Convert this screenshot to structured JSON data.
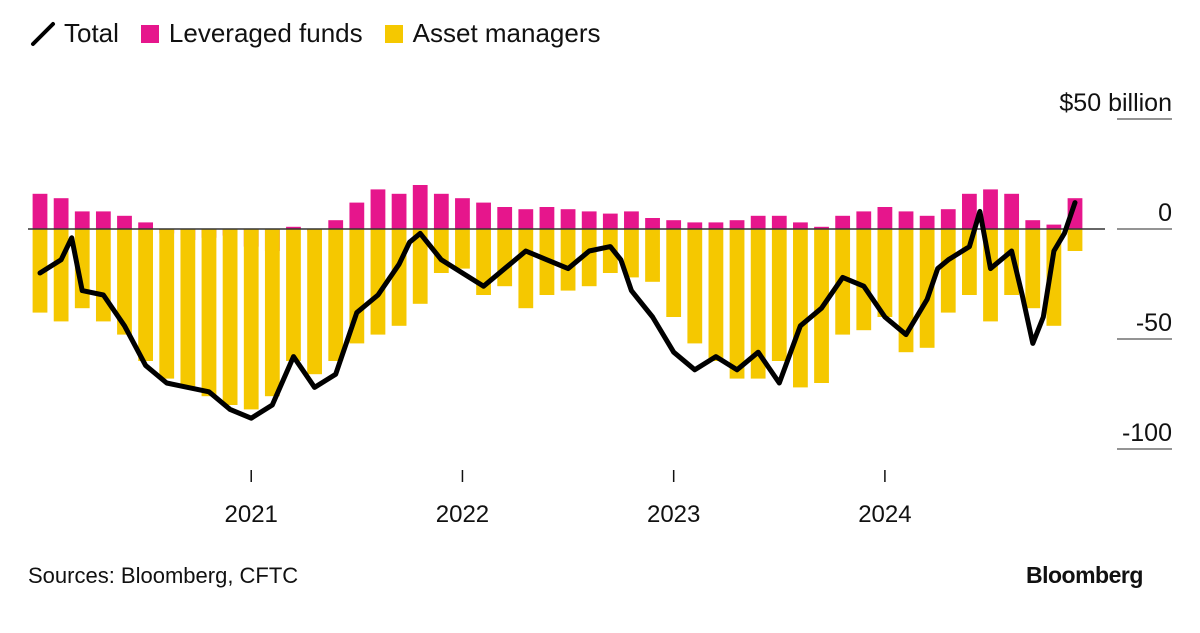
{
  "legend": {
    "total": "Total",
    "leveraged": "Leveraged funds",
    "asset": "Asset managers"
  },
  "colors": {
    "total": "#000000",
    "leveraged": "#e6168c",
    "asset": "#f5c800",
    "zero_line": "#333333"
  },
  "footer": {
    "source": "Sources: Bloomberg, CFTC",
    "brand": "Bloomberg"
  },
  "chart_data": {
    "type": "bar",
    "title": "",
    "y_tick_labels": [
      "$50 billion",
      "0",
      "-50",
      "-100"
    ],
    "y_ticks": [
      50,
      0,
      -50,
      -100
    ],
    "ylim": [
      -110,
      60
    ],
    "x_tick_labels": [
      "2021",
      "2022",
      "2023",
      "2024"
    ],
    "x_ticks": [
      2021.0,
      2022.0,
      2023.0,
      2024.0
    ],
    "xlim": [
      2020.0,
      2024.9
    ],
    "series": [
      {
        "name": "Leveraged funds",
        "kind": "bar",
        "x": [
          2020.0,
          2020.1,
          2020.2,
          2020.3,
          2020.4,
          2020.5,
          2020.6,
          2020.7,
          2020.8,
          2020.9,
          2021.0,
          2021.1,
          2021.2,
          2021.3,
          2021.4,
          2021.5,
          2021.6,
          2021.7,
          2021.8,
          2021.9,
          2022.0,
          2022.1,
          2022.2,
          2022.3,
          2022.4,
          2022.5,
          2022.6,
          2022.7,
          2022.8,
          2022.9,
          2023.0,
          2023.1,
          2023.2,
          2023.3,
          2023.4,
          2023.5,
          2023.6,
          2023.7,
          2023.8,
          2023.9,
          2024.0,
          2024.1,
          2024.2,
          2024.3,
          2024.4,
          2024.5,
          2024.6,
          2024.7,
          2024.8,
          2024.9
        ],
        "values": [
          16,
          14,
          8,
          8,
          6,
          3,
          -2,
          -5,
          -4,
          -3,
          -8,
          -10,
          1,
          -1,
          4,
          12,
          18,
          16,
          20,
          16,
          14,
          12,
          10,
          9,
          10,
          9,
          8,
          7,
          8,
          5,
          4,
          3,
          3,
          4,
          6,
          6,
          3,
          1,
          6,
          8,
          10,
          8,
          6,
          9,
          16,
          18,
          16,
          4,
          2,
          14
        ]
      },
      {
        "name": "Asset managers",
        "kind": "bar",
        "x": [
          2020.0,
          2020.1,
          2020.2,
          2020.3,
          2020.4,
          2020.5,
          2020.6,
          2020.7,
          2020.8,
          2020.9,
          2021.0,
          2021.1,
          2021.2,
          2021.3,
          2021.4,
          2021.5,
          2021.6,
          2021.7,
          2021.8,
          2021.9,
          2022.0,
          2022.1,
          2022.2,
          2022.3,
          2022.4,
          2022.5,
          2022.6,
          2022.7,
          2022.8,
          2022.9,
          2023.0,
          2023.1,
          2023.2,
          2023.3,
          2023.4,
          2023.5,
          2023.6,
          2023.7,
          2023.8,
          2023.9,
          2024.0,
          2024.1,
          2024.2,
          2024.3,
          2024.4,
          2024.5,
          2024.6,
          2024.7,
          2024.8,
          2024.9
        ],
        "values": [
          -38,
          -42,
          -36,
          -42,
          -48,
          -60,
          -68,
          -72,
          -76,
          -80,
          -82,
          -76,
          -60,
          -66,
          -60,
          -52,
          -48,
          -44,
          -34,
          -20,
          -18,
          -30,
          -26,
          -36,
          -30,
          -28,
          -26,
          -20,
          -22,
          -24,
          -40,
          -52,
          -60,
          -68,
          -68,
          -60,
          -72,
          -70,
          -48,
          -46,
          -40,
          -56,
          -54,
          -38,
          -30,
          -42,
          -30,
          -36,
          -44,
          -10
        ]
      },
      {
        "name": "Total",
        "kind": "line",
        "x": [
          2020.0,
          2020.1,
          2020.15,
          2020.2,
          2020.3,
          2020.4,
          2020.5,
          2020.6,
          2020.7,
          2020.8,
          2020.9,
          2021.0,
          2021.1,
          2021.2,
          2021.3,
          2021.4,
          2021.5,
          2021.6,
          2021.7,
          2021.75,
          2021.8,
          2021.9,
          2022.0,
          2022.1,
          2022.2,
          2022.3,
          2022.4,
          2022.5,
          2022.6,
          2022.7,
          2022.75,
          2022.8,
          2022.9,
          2023.0,
          2023.1,
          2023.2,
          2023.3,
          2023.4,
          2023.5,
          2023.6,
          2023.7,
          2023.8,
          2023.9,
          2024.0,
          2024.1,
          2024.2,
          2024.25,
          2024.3,
          2024.4,
          2024.45,
          2024.5,
          2024.6,
          2024.65,
          2024.7,
          2024.75,
          2024.8,
          2024.85,
          2024.9
        ],
        "values": [
          -20,
          -14,
          -4,
          -28,
          -30,
          -44,
          -62,
          -70,
          -72,
          -74,
          -82,
          -86,
          -80,
          -58,
          -72,
          -66,
          -38,
          -30,
          -16,
          -6,
          -2,
          -14,
          -20,
          -26,
          -18,
          -10,
          -14,
          -18,
          -10,
          -8,
          -14,
          -28,
          -40,
          -56,
          -64,
          -58,
          -64,
          -56,
          -70,
          -44,
          -36,
          -22,
          -26,
          -40,
          -48,
          -32,
          -18,
          -14,
          -8,
          8,
          -18,
          -10,
          -30,
          -52,
          -40,
          -10,
          -2,
          12
        ]
      }
    ]
  }
}
